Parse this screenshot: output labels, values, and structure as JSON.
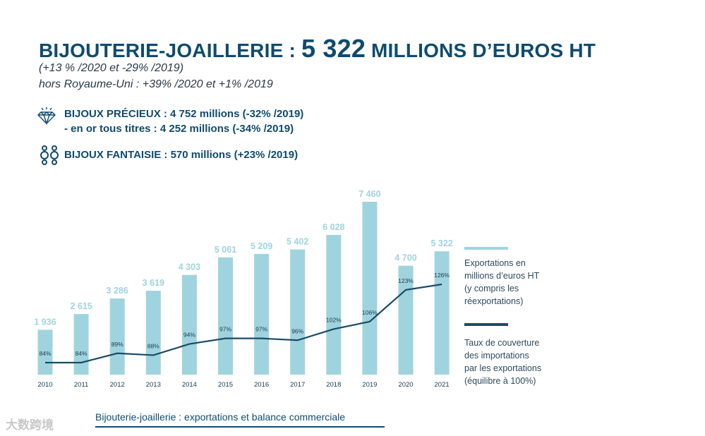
{
  "header": {
    "title_prefix": "BIJOUTERIE-JOAILLERIE : ",
    "title_value": "5 322",
    "title_suffix": " MILLIONS D’EUROS HT",
    "subtitle_1": "(+13 % /2020 et -29% /2019)",
    "subtitle_2": "hors Royaume-Uni : +39% /2020 et +1% /2019"
  },
  "categories": {
    "precieux_line1": "BIJOUX PRÉCIEUX : 4 752 millions (-32% /2019)",
    "precieux_line2": "- en or tous titres : 4 252 millions (-34% /2019)",
    "fantaisie": "BIJOUX FANTAISIE : 570 millions (+23% /2019)",
    "precieux_icon": "diamond-icon",
    "fantaisie_icon": "earrings-icon"
  },
  "legend": {
    "exports_label": "Exportations en\nmillions d’euros HT\n(y compris les\nréexportations)",
    "coverage_label": "Taux de couverture\ndes importations\npar les exportations\n(équilibre à 100%)"
  },
  "caption": "Bijouterie-joaillerie : exportations et balance commerciale",
  "watermark": "大数跨境",
  "colors": {
    "bar": "#9fd4de",
    "line": "#1a4b68",
    "title": "#0f4b70",
    "bar_label": "#9fd4de"
  },
  "chart_data": {
    "type": "bar",
    "title": "Bijouterie-joaillerie : exportations et balance commerciale",
    "categories": [
      "2010",
      "2011",
      "2012",
      "2013",
      "2014",
      "2015",
      "2016",
      "2017",
      "2018",
      "2019",
      "2020",
      "2021"
    ],
    "series": [
      {
        "name": "Exportations en millions d’euros HT (y compris les réexportations)",
        "type": "bar",
        "values": [
          1936,
          2615,
          3286,
          3619,
          4303,
          5061,
          5209,
          5402,
          6028,
          7460,
          4700,
          5322
        ],
        "labels": [
          "1 936",
          "2 615",
          "3 286",
          "3 619",
          "4 303",
          "5 061",
          "5 209",
          "5 402",
          "6 028",
          "7 460",
          "4 700",
          "5 322"
        ]
      },
      {
        "name": "Taux de couverture des importations par les exportations (équilibre à 100%)",
        "type": "line",
        "values": [
          84,
          84,
          89,
          88,
          94,
          97,
          97,
          96,
          102,
          106,
          123,
          126
        ],
        "labels": [
          "84%",
          "84%",
          "89%",
          "88%",
          "94%",
          "97%",
          "97%",
          "96%",
          "102%",
          "106%",
          "123%",
          "126%"
        ]
      }
    ],
    "xlabel": "",
    "ylabel": "",
    "ylim": [
      0,
      7460
    ],
    "line_ylim": [
      40,
      200
    ]
  }
}
